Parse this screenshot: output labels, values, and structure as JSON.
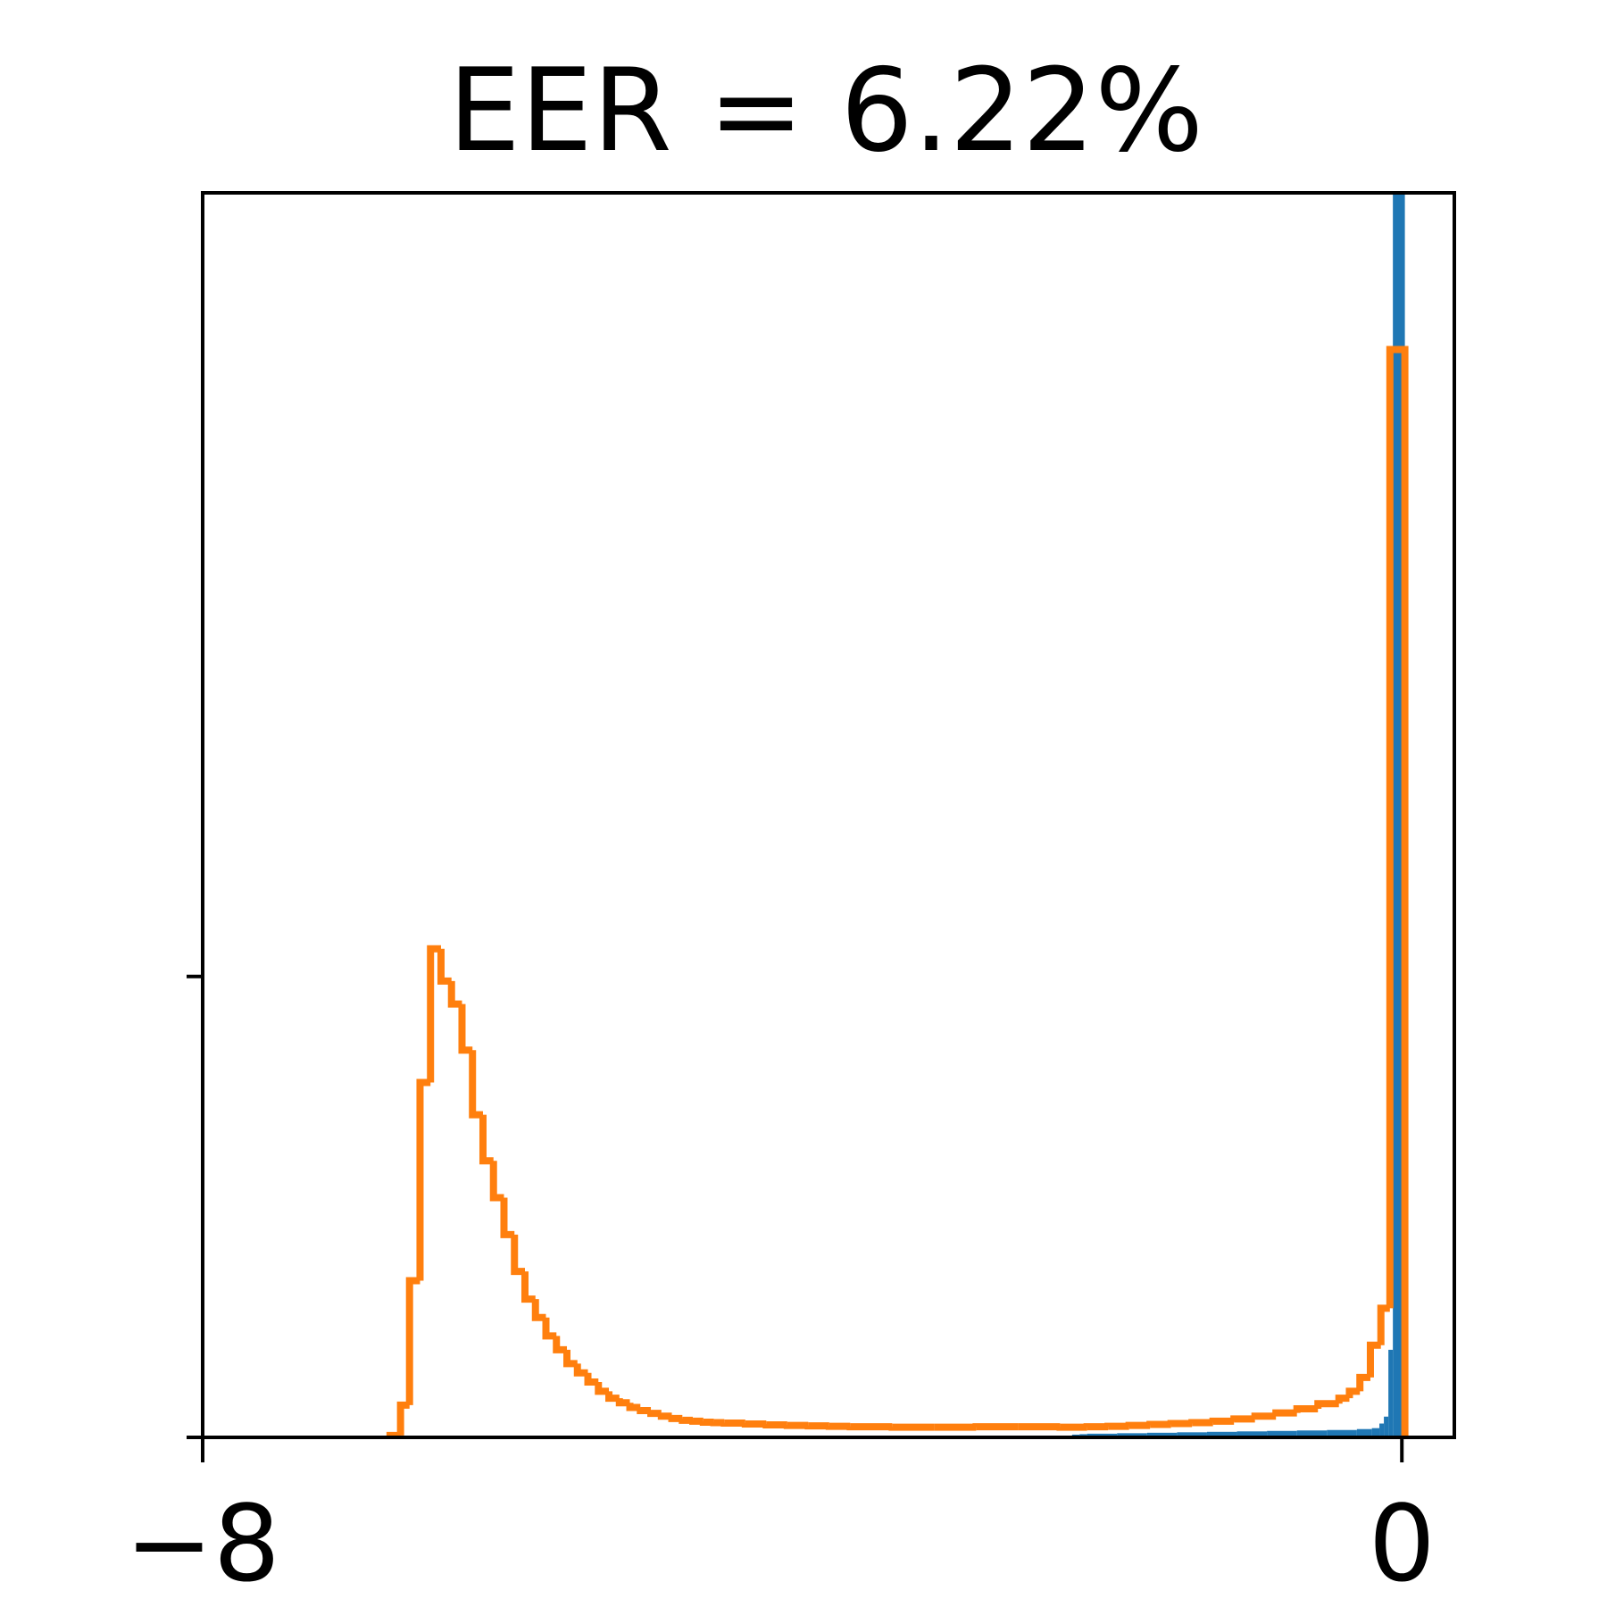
{
  "chart_data": {
    "type": "histogram",
    "title": "EER = 6.22%",
    "xlabel": "",
    "ylabel": "",
    "xlim": [
      -8.0,
      0.35
    ],
    "ylim": [
      0,
      2.7
    ],
    "x_ticks": [
      {
        "value": -8,
        "label": "−8"
      },
      {
        "value": 0,
        "label": "0"
      }
    ],
    "y_ticks": [
      0,
      1
    ],
    "grid": false,
    "colors": {
      "blue": "#1f77b4",
      "orange": "#ff7f0e"
    },
    "series": [
      {
        "color": "#1f77b4",
        "style": "filled-step",
        "bins": [
          [
            -2.2,
            -2.15,
            0.006
          ],
          [
            -2.15,
            -2.1,
            0.007
          ],
          [
            -2.1,
            -1.9,
            0.008
          ],
          [
            -1.9,
            -1.7,
            0.009
          ],
          [
            -1.7,
            -1.5,
            0.01
          ],
          [
            -1.5,
            -1.3,
            0.011
          ],
          [
            -1.3,
            -1.1,
            0.012
          ],
          [
            -1.1,
            -0.9,
            0.013
          ],
          [
            -0.9,
            -0.7,
            0.014
          ],
          [
            -0.7,
            -0.5,
            0.015
          ],
          [
            -0.5,
            -0.3,
            0.016
          ],
          [
            -0.3,
            -0.2,
            0.018
          ],
          [
            -0.2,
            -0.15,
            0.02
          ],
          [
            -0.15,
            -0.12,
            0.03
          ],
          [
            -0.12,
            -0.09,
            0.045
          ],
          [
            -0.09,
            -0.06,
            0.19
          ],
          [
            -0.06,
            0.02,
            2.7
          ]
        ]
      },
      {
        "color": "#ff7f0e",
        "style": "step",
        "bins": [
          [
            -6.75,
            -6.68,
            0.004
          ],
          [
            -6.68,
            -6.62,
            0.07
          ],
          [
            -6.62,
            -6.55,
            0.34
          ],
          [
            -6.55,
            -6.48,
            0.77
          ],
          [
            -6.48,
            -6.41,
            1.06
          ],
          [
            -6.41,
            -6.34,
            0.99
          ],
          [
            -6.34,
            -6.27,
            0.94
          ],
          [
            -6.27,
            -6.2,
            0.84
          ],
          [
            -6.2,
            -6.13,
            0.7
          ],
          [
            -6.13,
            -6.06,
            0.6
          ],
          [
            -6.06,
            -5.99,
            0.52
          ],
          [
            -5.99,
            -5.92,
            0.44
          ],
          [
            -5.92,
            -5.85,
            0.36
          ],
          [
            -5.85,
            -5.78,
            0.3
          ],
          [
            -5.78,
            -5.71,
            0.26
          ],
          [
            -5.71,
            -5.64,
            0.22
          ],
          [
            -5.64,
            -5.57,
            0.19
          ],
          [
            -5.57,
            -5.5,
            0.16
          ],
          [
            -5.5,
            -5.43,
            0.14
          ],
          [
            -5.43,
            -5.36,
            0.12
          ],
          [
            -5.36,
            -5.29,
            0.1
          ],
          [
            -5.29,
            -5.22,
            0.085
          ],
          [
            -5.22,
            -5.15,
            0.075
          ],
          [
            -5.15,
            -5.08,
            0.065
          ],
          [
            -5.08,
            -5.01,
            0.058
          ],
          [
            -5.01,
            -4.94,
            0.052
          ],
          [
            -4.94,
            -4.87,
            0.046
          ],
          [
            -4.87,
            -4.8,
            0.041
          ],
          [
            -4.8,
            -4.73,
            0.037
          ],
          [
            -4.73,
            -4.66,
            0.035
          ],
          [
            -4.66,
            -4.59,
            0.033
          ],
          [
            -4.59,
            -4.52,
            0.032
          ],
          [
            -4.52,
            -4.38,
            0.031
          ],
          [
            -4.38,
            -4.24,
            0.029
          ],
          [
            -4.24,
            -4.1,
            0.027
          ],
          [
            -4.1,
            -3.96,
            0.026
          ],
          [
            -3.96,
            -3.82,
            0.025
          ],
          [
            -3.82,
            -3.68,
            0.024
          ],
          [
            -3.68,
            -3.4,
            0.023
          ],
          [
            -3.4,
            -3.12,
            0.022
          ],
          [
            -3.12,
            -2.84,
            0.022
          ],
          [
            -2.84,
            -2.56,
            0.023
          ],
          [
            -2.56,
            -2.28,
            0.023
          ],
          [
            -2.28,
            -2.1,
            0.022
          ],
          [
            -2.1,
            -1.96,
            0.023
          ],
          [
            -1.96,
            -1.82,
            0.024
          ],
          [
            -1.82,
            -1.68,
            0.026
          ],
          [
            -1.68,
            -1.54,
            0.028
          ],
          [
            -1.54,
            -1.4,
            0.03
          ],
          [
            -1.4,
            -1.26,
            0.032
          ],
          [
            -1.26,
            -1.12,
            0.035
          ],
          [
            -1.12,
            -0.98,
            0.04
          ],
          [
            -0.98,
            -0.84,
            0.046
          ],
          [
            -0.84,
            -0.7,
            0.053
          ],
          [
            -0.7,
            -0.56,
            0.062
          ],
          [
            -0.56,
            -0.42,
            0.073
          ],
          [
            -0.42,
            -0.35,
            0.085
          ],
          [
            -0.35,
            -0.28,
            0.1
          ],
          [
            -0.28,
            -0.21,
            0.13
          ],
          [
            -0.21,
            -0.14,
            0.2
          ],
          [
            -0.14,
            -0.08,
            0.28
          ],
          [
            -0.08,
            -0.04,
            2.36
          ],
          [
            -0.04,
            0.02,
            2.36
          ]
        ]
      }
    ]
  }
}
